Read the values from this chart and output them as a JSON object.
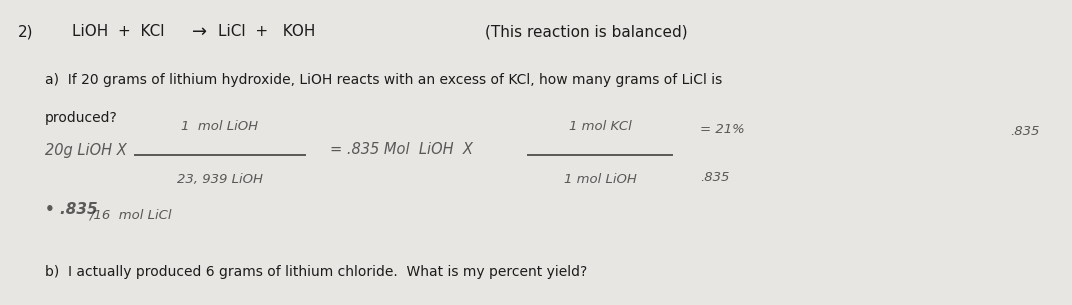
{
  "background_color": "#c8c8c8",
  "paper_color": "#e8e6e2",
  "fig_width": 10.72,
  "fig_height": 3.05,
  "dpi": 100,
  "number": "2)",
  "eq_lioh": "LiOH + KCl",
  "eq_arrow": "→",
  "eq_licl": "LiCl +  KOH",
  "eq_note": "(This reaction is balanced)",
  "question_a1": "a)  If 20 grams of lithium hydroxide, LiOH reacts with an excess of KCl, how many grams of LiCl is",
  "question_a2": "produced?",
  "hw_start": "20g LiOH X",
  "hw_frac1_num": "1  mol LiOH",
  "hw_frac1_den": "23, 939 LiOH",
  "hw_mid": "= .835 Mol  LiOH  X",
  "hw_frac2_num": "1 mol KCl",
  "hw_frac2_den": "1 mol LiOH",
  "hw_result": "= 21%",
  "hw_result2": ".835",
  "hw_bullet": "• .835",
  "hw_bullet2": "/16  mol LiCl",
  "question_b": "b)  I actually produced 6 grams of lithium chloride.  What is my percent yield?",
  "print_color": "#1c1c1c",
  "hw_color": "#2a2a2a",
  "hw_alpha": 0.75
}
